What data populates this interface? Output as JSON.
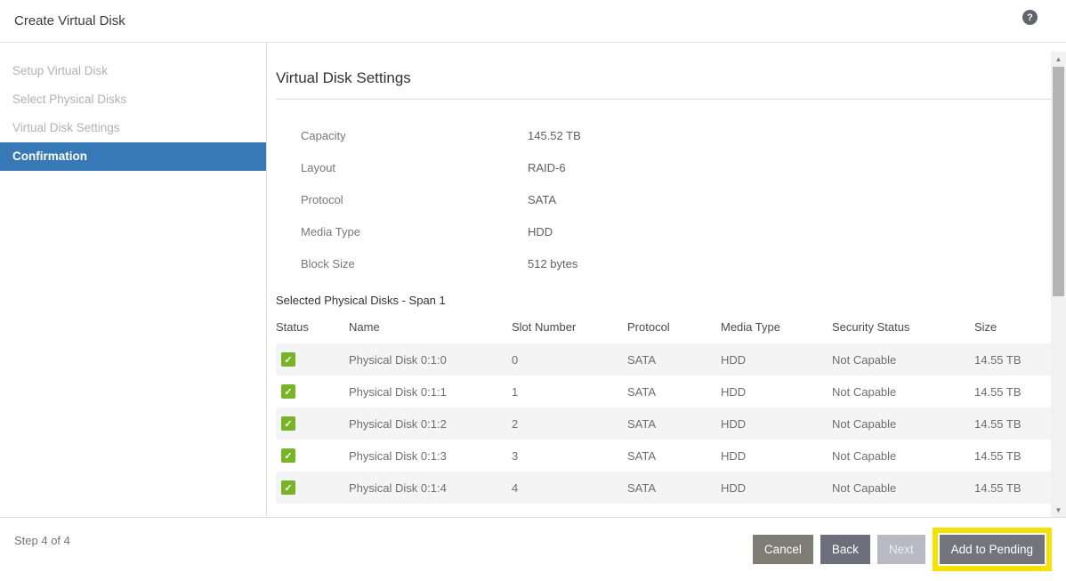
{
  "header": {
    "title": "Create Virtual Disk"
  },
  "sidebar": {
    "steps": [
      {
        "label": "Setup Virtual Disk",
        "state": "inactive"
      },
      {
        "label": "Select Physical Disks",
        "state": "inactive"
      },
      {
        "label": "Virtual Disk Settings",
        "state": "inactive"
      },
      {
        "label": "Confirmation",
        "state": "active"
      }
    ]
  },
  "main": {
    "section_title": "Virtual Disk Settings",
    "settings": [
      {
        "label": "Capacity",
        "value": "145.52 TB"
      },
      {
        "label": "Layout",
        "value": "RAID-6"
      },
      {
        "label": "Protocol",
        "value": "SATA"
      },
      {
        "label": "Media Type",
        "value": "HDD"
      },
      {
        "label": "Block Size",
        "value": "512 bytes"
      }
    ],
    "table": {
      "title": "Selected Physical Disks - Span 1",
      "columns": [
        "Status",
        "Name",
        "Slot Number",
        "Protocol",
        "Media Type",
        "Security Status",
        "Size"
      ],
      "rows": [
        {
          "status": "checked",
          "name": "Physical Disk 0:1:0",
          "slot_number": "0",
          "protocol": "SATA",
          "media_type": "HDD",
          "security_status": "Not Capable",
          "size": "14.55 TB"
        },
        {
          "status": "checked",
          "name": "Physical Disk 0:1:1",
          "slot_number": "1",
          "protocol": "SATA",
          "media_type": "HDD",
          "security_status": "Not Capable",
          "size": "14.55 TB"
        },
        {
          "status": "checked",
          "name": "Physical Disk 0:1:2",
          "slot_number": "2",
          "protocol": "SATA",
          "media_type": "HDD",
          "security_status": "Not Capable",
          "size": "14.55 TB"
        },
        {
          "status": "checked",
          "name": "Physical Disk 0:1:3",
          "slot_number": "3",
          "protocol": "SATA",
          "media_type": "HDD",
          "security_status": "Not Capable",
          "size": "14.55 TB"
        },
        {
          "status": "checked",
          "name": "Physical Disk 0:1:4",
          "slot_number": "4",
          "protocol": "SATA",
          "media_type": "HDD",
          "security_status": "Not Capable",
          "size": "14.55 TB"
        }
      ]
    }
  },
  "footer": {
    "step_indicator": "Step 4 of 4",
    "buttons": {
      "cancel": "Cancel",
      "back": "Back",
      "next": "Next",
      "add_to_pending": "Add to Pending"
    },
    "next_disabled": true
  },
  "icons": {
    "help": "?",
    "check": "✓",
    "scroll_up": "▲",
    "scroll_down": "▼"
  },
  "colors": {
    "active_step_bg": "#3779B7",
    "checkbox_green": "#77B527",
    "highlight_yellow": "#F5E203",
    "button_cancel": "#7F7B75",
    "button_back": "#6E6F7C",
    "button_next_disabled": "#B8B9C3",
    "button_add": "#74747E"
  }
}
